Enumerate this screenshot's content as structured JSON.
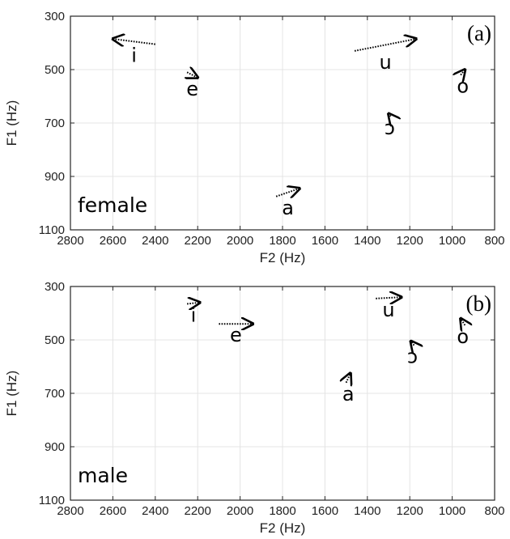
{
  "chart_data": [
    {
      "type": "scatter",
      "panel_label": "(a)",
      "group_label": "female",
      "xlabel": "F2 (Hz)",
      "ylabel": "F1 (Hz)",
      "xlim": [
        2800,
        800
      ],
      "ylim": [
        300,
        1100
      ],
      "x_reversed": true,
      "y_reversed": true,
      "xticks": [
        2800,
        2600,
        2400,
        2200,
        2000,
        1800,
        1600,
        1400,
        1200,
        1000,
        800
      ],
      "yticks": [
        300,
        500,
        700,
        900,
        1100
      ],
      "grid": true,
      "vowels": [
        {
          "label": "i",
          "start": [
            2400,
            405
          ],
          "end": [
            2600,
            385
          ]
        },
        {
          "label": "e",
          "start": [
            2250,
            510
          ],
          "end": [
            2200,
            530
          ]
        },
        {
          "label": "u",
          "start": [
            1460,
            430
          ],
          "end": [
            1170,
            385
          ]
        },
        {
          "label": "o",
          "start": [
            960,
            520
          ],
          "end": [
            940,
            500
          ]
        },
        {
          "label": "ɔ",
          "start": [
            1290,
            675
          ],
          "end": [
            1300,
            665
          ]
        },
        {
          "label": "a",
          "start": [
            1830,
            975
          ],
          "end": [
            1720,
            945
          ]
        }
      ]
    },
    {
      "type": "scatter",
      "panel_label": "(b)",
      "group_label": "male",
      "xlabel": "F2 (Hz)",
      "ylabel": "F1 (Hz)",
      "xlim": [
        2800,
        800
      ],
      "ylim": [
        300,
        1100
      ],
      "x_reversed": true,
      "y_reversed": true,
      "xticks": [
        2800,
        2600,
        2400,
        2200,
        2000,
        1800,
        1600,
        1400,
        1200,
        1000,
        800
      ],
      "yticks": [
        300,
        500,
        700,
        900,
        1100
      ],
      "grid": true,
      "vowels": [
        {
          "label": "i",
          "start": [
            2250,
            365
          ],
          "end": [
            2190,
            360
          ]
        },
        {
          "label": "e",
          "start": [
            2100,
            440
          ],
          "end": [
            1940,
            440
          ]
        },
        {
          "label": "u",
          "start": [
            1360,
            345
          ],
          "end": [
            1240,
            340
          ]
        },
        {
          "label": "o",
          "start": [
            940,
            445
          ],
          "end": [
            960,
            420
          ]
        },
        {
          "label": "ɔ",
          "start": [
            1180,
            520
          ],
          "end": [
            1195,
            505
          ]
        },
        {
          "label": "a",
          "start": [
            1500,
            660
          ],
          "end": [
            1480,
            625
          ]
        }
      ]
    }
  ]
}
